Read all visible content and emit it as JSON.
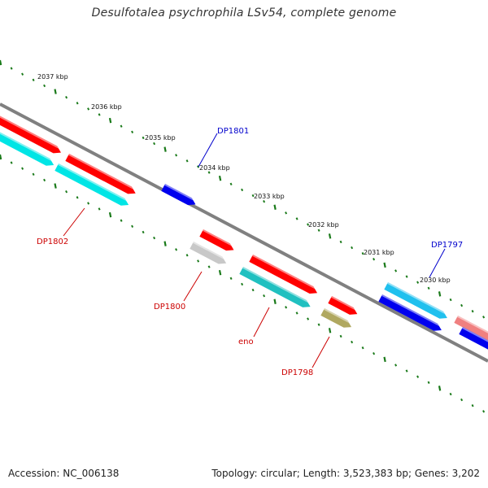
{
  "title": "Desulfotalea psychrophila LSv54, complete genome",
  "footer": {
    "accession": "Accession: NC_006138",
    "summary": "Topology: circular; Length: 3,523,383 bp; Genes: 3,202"
  },
  "scale_labels": [
    "2037 kbp",
    "2036 kbp",
    "2035 kbp",
    "2034 kbp",
    "2033 kbp",
    "2032 kbp",
    "2031 kbp",
    "2030 kbp"
  ],
  "gene_labels": [
    {
      "name": "DP1801",
      "color": "#0000cc"
    },
    {
      "name": "DP1802",
      "color": "#cc0000"
    },
    {
      "name": "DP1800",
      "color": "#cc0000"
    },
    {
      "name": "eno",
      "color": "#cc0000"
    },
    {
      "name": "DP1798",
      "color": "#cc0000"
    },
    {
      "name": "DP1797",
      "color": "#0000cc"
    }
  ],
  "colors": {
    "backbone": "#808080",
    "ticks": "#1a7a1a",
    "red": "#ff0000",
    "cyan": "#00e5e5",
    "blue": "#0000ee",
    "teal": "#20c0c0",
    "silver": "#c8c8c8",
    "olive": "#b0a860",
    "skyblue": "#20c0ee",
    "pink": "#f08080"
  }
}
